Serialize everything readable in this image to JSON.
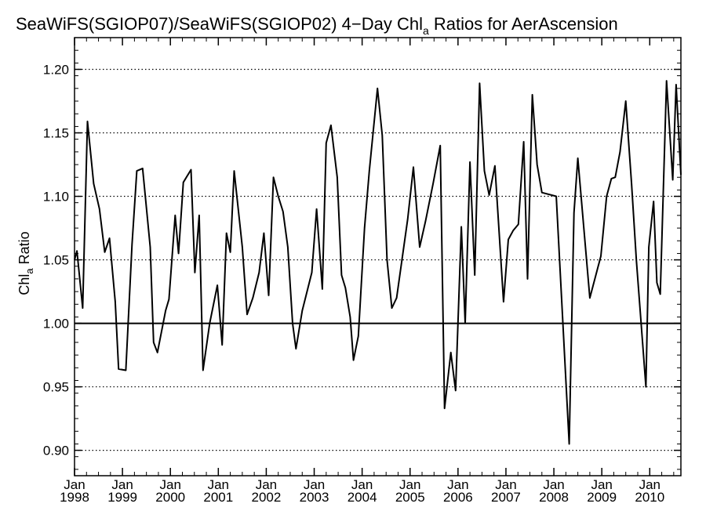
{
  "chart_data": {
    "type": "line",
    "title": {
      "pre": "SeaWiFS(SGIOP07)/SeaWiFS(SGIOP02) 4−Day Chl",
      "sub": "a",
      "post": " Ratios for AerAscension"
    },
    "ylabel": {
      "pre": "Chl",
      "sub": "a",
      "post": " Ratio"
    },
    "xlabel": "",
    "ylim": [
      0.88,
      1.225
    ],
    "xlim": [
      1998.0,
      2010.65
    ],
    "yticks": [
      "0.90",
      "0.95",
      "1.00",
      "1.05",
      "1.10",
      "1.15",
      "1.20"
    ],
    "xticks": [
      {
        "month": "Jan",
        "year": "1998",
        "value": 1998
      },
      {
        "month": "Jan",
        "year": "1999",
        "value": 1999
      },
      {
        "month": "Jan",
        "year": "2000",
        "value": 2000
      },
      {
        "month": "Jan",
        "year": "2001",
        "value": 2001
      },
      {
        "month": "Jan",
        "year": "2002",
        "value": 2002
      },
      {
        "month": "Jan",
        "year": "2003",
        "value": 2003
      },
      {
        "month": "Jan",
        "year": "2004",
        "value": 2004
      },
      {
        "month": "Jan",
        "year": "2005",
        "value": 2005
      },
      {
        "month": "Jan",
        "year": "2006",
        "value": 2006
      },
      {
        "month": "Jan",
        "year": "2007",
        "value": 2007
      },
      {
        "month": "Jan",
        "year": "2008",
        "value": 2008
      },
      {
        "month": "Jan",
        "year": "2009",
        "value": 2009
      },
      {
        "month": "Jan",
        "year": "2010",
        "value": 2010
      }
    ],
    "grid": "horizontal-dotted",
    "reference_line": 1.0,
    "line_color": "#000000",
    "series": [
      {
        "x": [
          1998.0,
          1998.05,
          1998.17,
          1998.27,
          1998.4,
          1998.52,
          1998.63,
          1998.73,
          1998.85,
          1998.92,
          1999.07,
          1999.2,
          1999.3,
          1999.42,
          1999.58,
          1999.65,
          1999.73,
          1999.9,
          1999.97,
          2000.1,
          2000.17,
          2000.27,
          2000.43,
          2000.51,
          2000.6,
          2000.68,
          2000.82,
          2000.98,
          2001.08,
          2001.17,
          2001.25,
          2001.33,
          2001.5,
          2001.6,
          2001.72,
          2001.85,
          2001.95,
          2002.05,
          2002.15,
          2002.25,
          2002.35,
          2002.45,
          2002.55,
          2002.62,
          2002.75,
          2002.95,
          2003.05,
          2003.17,
          2003.25,
          2003.35,
          2003.48,
          2003.57,
          2003.65,
          2003.75,
          2003.82,
          2003.92,
          2004.05,
          2004.15,
          2004.32,
          2004.42,
          2004.52,
          2004.62,
          2004.72,
          2004.95,
          2005.07,
          2005.2,
          2005.32,
          2005.48,
          2005.63,
          2005.72,
          2005.85,
          2005.95,
          2006.07,
          2006.15,
          2006.25,
          2006.35,
          2006.45,
          2006.55,
          2006.65,
          2006.77,
          2006.95,
          2007.05,
          2007.15,
          2007.26,
          2007.37,
          2007.45,
          2007.55,
          2007.65,
          2007.75,
          2008.05,
          2008.32,
          2008.42,
          2008.5,
          2008.75,
          2008.98,
          2009.1,
          2009.2,
          2009.28,
          2009.38,
          2009.5,
          2009.62,
          2009.72,
          2009.92,
          2009.98,
          2010.08,
          2010.15,
          2010.22,
          2010.35,
          2010.48,
          2010.55,
          2010.65
        ],
        "y": [
          1.05,
          1.057,
          1.012,
          1.159,
          1.11,
          1.09,
          1.056,
          1.067,
          1.017,
          0.964,
          0.963,
          1.062,
          1.12,
          1.122,
          1.06,
          0.985,
          0.977,
          1.01,
          1.019,
          1.085,
          1.055,
          1.111,
          1.121,
          1.04,
          1.085,
          0.963,
          1.0,
          1.03,
          0.983,
          1.071,
          1.056,
          1.12,
          1.06,
          1.007,
          1.02,
          1.04,
          1.071,
          1.022,
          1.115,
          1.1,
          1.088,
          1.06,
          1.0,
          0.98,
          1.01,
          1.04,
          1.09,
          1.027,
          1.142,
          1.156,
          1.115,
          1.038,
          1.028,
          1.005,
          0.971,
          0.99,
          1.075,
          1.12,
          1.185,
          1.148,
          1.05,
          1.012,
          1.02,
          1.082,
          1.123,
          1.06,
          1.08,
          1.11,
          1.14,
          0.933,
          0.977,
          0.947,
          1.076,
          1.0,
          1.127,
          1.038,
          1.189,
          1.12,
          1.101,
          1.124,
          1.017,
          1.066,
          1.073,
          1.078,
          1.143,
          1.035,
          1.18,
          1.125,
          1.103,
          1.1,
          0.905,
          1.087,
          1.13,
          1.02,
          1.053,
          1.1,
          1.114,
          1.115,
          1.135,
          1.175,
          1.11,
          1.05,
          0.95,
          1.06,
          1.096,
          1.032,
          1.023,
          1.191,
          1.113,
          1.188,
          1.117
        ]
      }
    ]
  }
}
